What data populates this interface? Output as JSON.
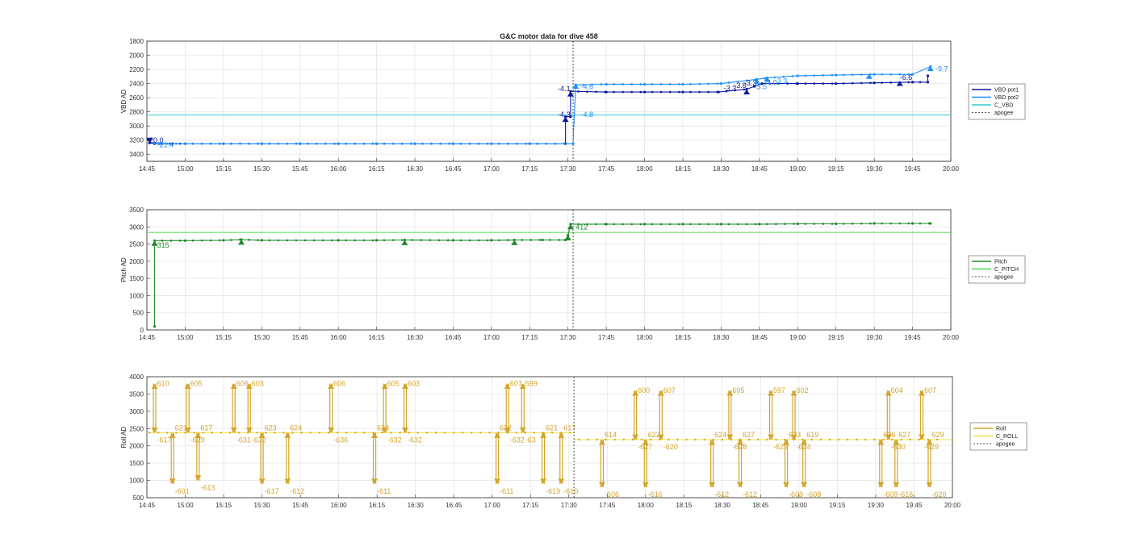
{
  "figure": {
    "title": "G&C motor data for dive 458"
  },
  "colors": {
    "vbd_pot1": "#0a1a9c",
    "vbd_pot2": "#1e90ff",
    "c_vbd": "#33cccc",
    "pitch": "#1e8a2a",
    "c_pitch": "#4cd94c",
    "roll": "#d4a52a",
    "c_roll": "#f2e34a",
    "apogee": "#222222",
    "grid": "#e6e6e6",
    "axis": "#333333"
  },
  "x_ticks": [
    "14:45",
    "15:00",
    "15:15",
    "15:30",
    "15:45",
    "16:00",
    "16:15",
    "16:30",
    "16:45",
    "17:00",
    "17:15",
    "17:30",
    "17:45",
    "18:00",
    "18:15",
    "18:30",
    "18:45",
    "19:00",
    "19:15",
    "19:30",
    "19:45",
    "20:00"
  ],
  "chart_data": [
    {
      "type": "line",
      "title": "G&C motor data for dive 458",
      "ylabel": "VBD AD",
      "xlim": [
        "14:45",
        "20:00"
      ],
      "ylim": [
        1800,
        3500
      ],
      "y_reversed": true,
      "y_ticks": [
        1800,
        2000,
        2200,
        2400,
        2600,
        2800,
        3000,
        3200,
        3400
      ],
      "grid": true,
      "legend": {
        "placement": "outside-right",
        "entries": [
          "VBD pot1",
          "VBD pot2",
          "C_VBD",
          "apogee"
        ]
      },
      "apogee_time": "17:32",
      "hlines": [
        {
          "name": "C_VBD",
          "y": 2845
        }
      ],
      "series": [
        {
          "name": "VBD pot1",
          "points": [
            [
              "14:46",
              3240
            ],
            [
              "14:48",
              3250
            ],
            [
              "14:51",
              3250
            ],
            [
              "14:55",
              3250
            ],
            [
              "15:00",
              3250
            ],
            [
              "15:15",
              3250
            ],
            [
              "15:30",
              3250
            ],
            [
              "15:45",
              3250
            ],
            [
              "16:00",
              3250
            ],
            [
              "16:15",
              3250
            ],
            [
              "16:30",
              3250
            ],
            [
              "16:45",
              3250
            ],
            [
              "17:00",
              3250
            ],
            [
              "17:15",
              3250
            ],
            [
              "17:29",
              3250
            ],
            [
              "17:29",
              2870
            ],
            [
              "17:31",
              2870
            ],
            [
              "17:31",
              2510
            ],
            [
              "17:45",
              2520
            ],
            [
              "18:00",
              2520
            ],
            [
              "18:15",
              2520
            ],
            [
              "18:29",
              2520
            ],
            [
              "18:40",
              2480
            ],
            [
              "18:43",
              2440
            ],
            [
              "18:46",
              2400
            ],
            [
              "19:00",
              2400
            ],
            [
              "19:15",
              2400
            ],
            [
              "19:30",
              2390
            ],
            [
              "19:45",
              2380
            ],
            [
              "19:51",
              2380
            ],
            [
              "19:51",
              2290
            ]
          ]
        },
        {
          "name": "VBD pot2",
          "points": [
            [
              "14:48",
              3240
            ],
            [
              "14:50",
              3250
            ],
            [
              "15:00",
              3250
            ],
            [
              "15:15",
              3250
            ],
            [
              "15:30",
              3250
            ],
            [
              "15:45",
              3250
            ],
            [
              "16:00",
              3250
            ],
            [
              "16:15",
              3250
            ],
            [
              "16:30",
              3250
            ],
            [
              "16:45",
              3250
            ],
            [
              "17:00",
              3250
            ],
            [
              "17:15",
              3250
            ],
            [
              "17:32",
              3250
            ],
            [
              "17:33",
              2420
            ],
            [
              "17:45",
              2410
            ],
            [
              "18:00",
              2410
            ],
            [
              "18:15",
              2410
            ],
            [
              "18:30",
              2400
            ],
            [
              "18:44",
              2340
            ],
            [
              "18:48",
              2320
            ],
            [
              "19:00",
              2290
            ],
            [
              "19:15",
              2280
            ],
            [
              "19:30",
              2270
            ],
            [
              "19:45",
              2270
            ],
            [
              "19:52",
              2160
            ]
          ]
        }
      ],
      "annotations": [
        {
          "text": "-20.0",
          "x": "14:45",
          "y": 3240,
          "series": "VBD pot1"
        },
        {
          "text": "-21.4",
          "x": "14:49",
          "y": 3300,
          "series": "VBD pot2"
        },
        {
          "text": "-4.3",
          "x": "17:26",
          "y": 2870,
          "series": "VBD pot1"
        },
        {
          "text": "-4.1",
          "x": "17:26",
          "y": 2510,
          "series": "VBD pot1"
        },
        {
          "text": "-4.6",
          "x": "17:35",
          "y": 2480,
          "series": "VBD pot2"
        },
        {
          "text": "-4.8",
          "x": "17:35",
          "y": 2870,
          "series": "VBD pot2"
        },
        {
          "text": "-3.3",
          "x": "18:31",
          "y": 2500,
          "series": "VBD pot1"
        },
        {
          "text": "-3.8",
          "x": "18:35",
          "y": 2460,
          "series": "VBD pot1"
        },
        {
          "text": "-3.3",
          "x": "18:39",
          "y": 2430,
          "series": "VBD pot1"
        },
        {
          "text": "-3.5",
          "x": "18:43",
          "y": 2480,
          "series": "VBD pot2"
        },
        {
          "text": "-4.0",
          "x": "18:47",
          "y": 2420,
          "series": "VBD pot2"
        },
        {
          "text": "-3.3",
          "x": "18:51",
          "y": 2400,
          "series": "VBD pot2"
        },
        {
          "text": "-6.6",
          "x": "19:40",
          "y": 2350,
          "series": "VBD pot1"
        },
        {
          "text": "-9.7",
          "x": "19:54",
          "y": 2230,
          "series": "VBD pot2"
        }
      ]
    },
    {
      "type": "line",
      "ylabel": "Pitch AD",
      "xlim": [
        "14:45",
        "20:00"
      ],
      "ylim": [
        0,
        3500
      ],
      "y_ticks": [
        0,
        500,
        1000,
        1500,
        2000,
        2500,
        3000,
        3500
      ],
      "grid": true,
      "legend": {
        "placement": "outside-right",
        "entries": [
          "Pitch",
          "C_PITCH",
          "apogee"
        ]
      },
      "apogee_time": "17:32",
      "hlines": [
        {
          "name": "C_PITCH",
          "y": 2840
        }
      ],
      "series": [
        {
          "name": "Pitch",
          "points": [
            [
              "14:48",
              100
            ],
            [
              "14:48",
              2600
            ],
            [
              "15:00",
              2600
            ],
            [
              "15:15",
              2610
            ],
            [
              "15:22",
              2630
            ],
            [
              "15:30",
              2610
            ],
            [
              "16:00",
              2610
            ],
            [
              "16:15",
              2610
            ],
            [
              "16:26",
              2620
            ],
            [
              "16:45",
              2610
            ],
            [
              "17:00",
              2610
            ],
            [
              "17:09",
              2620
            ],
            [
              "17:20",
              2620
            ],
            [
              "17:29",
              2620
            ],
            [
              "17:30",
              2760
            ],
            [
              "17:31",
              3080
            ],
            [
              "17:45",
              3080
            ],
            [
              "18:00",
              3080
            ],
            [
              "18:15",
              3080
            ],
            [
              "18:30",
              3080
            ],
            [
              "18:45",
              3080
            ],
            [
              "19:00",
              3090
            ],
            [
              "19:15",
              3090
            ],
            [
              "19:30",
              3100
            ],
            [
              "19:45",
              3100
            ],
            [
              "19:52",
              3100
            ]
          ]
        }
      ],
      "annotations": [
        {
          "text": "315",
          "x": "14:49",
          "y": 2400
        },
        {
          "text": "412",
          "x": "17:33",
          "y": 2920
        }
      ]
    },
    {
      "type": "line",
      "ylabel": "Roll AD",
      "xlim": [
        "14:45",
        "20:00"
      ],
      "ylim": [
        500,
        4000
      ],
      "y_ticks": [
        500,
        1000,
        1500,
        2000,
        2500,
        3000,
        3500,
        4000
      ],
      "grid": true,
      "legend": {
        "placement": "outside-right",
        "entries": [
          "Roll",
          "C_ROLL",
          "apogee"
        ]
      },
      "apogee_time": "17:32",
      "hlines": [
        {
          "name": "C_ROLL",
          "y_before": 2380,
          "y_after": 2180,
          "split_time": "17:32"
        }
      ],
      "series": [
        {
          "name": "Roll",
          "baseline_before": 2380,
          "baseline_after": 2180
        }
      ],
      "roll_moves": [
        {
          "t": "14:48",
          "val": 3800,
          "pre": "-617",
          "post": "610"
        },
        {
          "t": "14:55",
          "val": 900,
          "pre": "621",
          "post": "-601"
        },
        {
          "t": "15:01",
          "val": 3800,
          "pre": "-629",
          "post": "605"
        },
        {
          "t": "15:05",
          "val": 1000,
          "pre": "617",
          "post": "-613"
        },
        {
          "t": "15:19",
          "val": 3800,
          "pre": "-631",
          "post": "606"
        },
        {
          "t": "15:25",
          "val": 3800,
          "pre": "-632",
          "post": "603"
        },
        {
          "t": "15:30",
          "val": 900,
          "pre": "623",
          "post": "-617"
        },
        {
          "t": "15:40",
          "val": 900,
          "pre": "624",
          "post": "-612"
        },
        {
          "t": "15:57",
          "val": 3800,
          "pre": "-636",
          "post": "606"
        },
        {
          "t": "16:14",
          "val": 900,
          "pre": "623",
          "post": "-611"
        },
        {
          "t": "16:18",
          "val": 3800,
          "pre": "-632",
          "post": "605"
        },
        {
          "t": "16:26",
          "val": 3800,
          "pre": "-632",
          "post": "603"
        },
        {
          "t": "17:02",
          "val": 900,
          "pre": "622",
          "post": "-611"
        },
        {
          "t": "17:06",
          "val": 3800,
          "pre": "-632",
          "post": "607"
        },
        {
          "t": "17:12",
          "val": 3800,
          "pre": "-63",
          "post": "599"
        },
        {
          "t": "17:20",
          "val": 900,
          "pre": "621",
          "post": "-619"
        },
        {
          "t": "17:27",
          "val": 900,
          "pre": "617",
          "post": "-610"
        },
        {
          "t": "17:43",
          "val": 800,
          "pre": "614",
          "post": "-606"
        },
        {
          "t": "17:56",
          "val": 3600,
          "pre": "-627",
          "post": "600"
        },
        {
          "t": "18:00",
          "val": 800,
          "pre": "622",
          "post": "-616"
        },
        {
          "t": "18:06",
          "val": 3600,
          "pre": "-620",
          "post": "607"
        },
        {
          "t": "18:26",
          "val": 800,
          "pre": "624",
          "post": "-612"
        },
        {
          "t": "18:33",
          "val": 3600,
          "pre": "-628",
          "post": "605"
        },
        {
          "t": "18:37",
          "val": 800,
          "pre": "627",
          "post": "-612"
        },
        {
          "t": "18:49",
          "val": 3600,
          "pre": "-629",
          "post": "597"
        },
        {
          "t": "18:55",
          "val": 800,
          "pre": "623",
          "post": "-609"
        },
        {
          "t": "18:58",
          "val": 3600,
          "pre": "-624",
          "post": "602"
        },
        {
          "t": "19:02",
          "val": 800,
          "pre": "619",
          "post": "-608"
        },
        {
          "t": "19:32",
          "val": 800,
          "pre": "626",
          "post": "-609"
        },
        {
          "t": "19:35",
          "val": 3600,
          "pre": "-630",
          "post": "604"
        },
        {
          "t": "19:38",
          "val": 800,
          "pre": "627",
          "post": "-616"
        },
        {
          "t": "19:48",
          "val": 3600,
          "pre": "-629",
          "post": "607"
        },
        {
          "t": "19:51",
          "val": 800,
          "pre": "629",
          "post": "-620"
        }
      ]
    }
  ]
}
